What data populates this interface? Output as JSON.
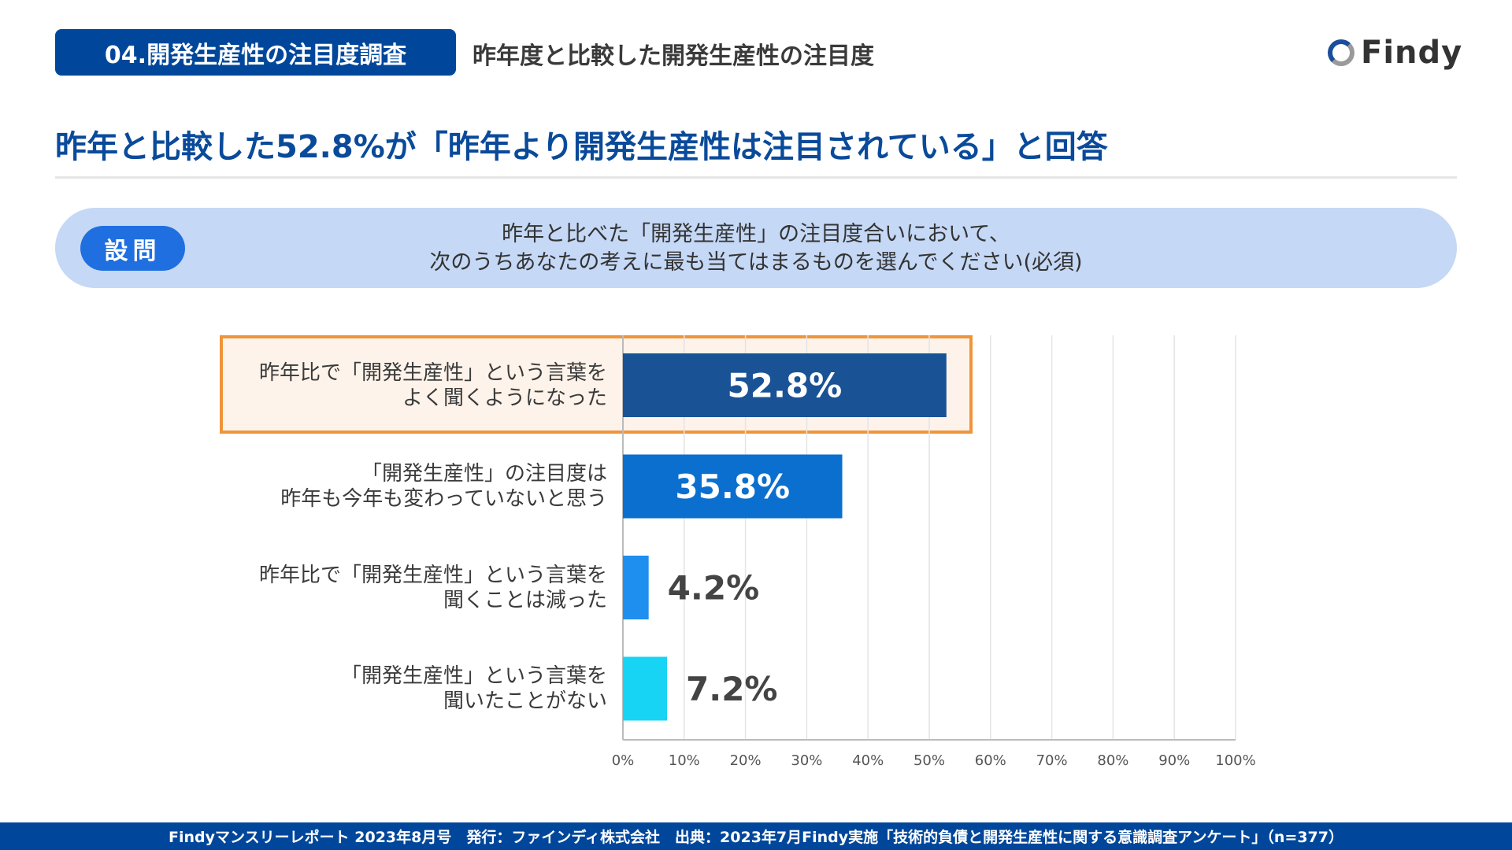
{
  "header": {
    "section_badge": "04.開発生産性の注目度調査",
    "subtitle": "昨年度と比較した開発生産性の注目度",
    "logo_text": "Findy"
  },
  "headline": "昨年と比較した52.8%が「昨年より開発生産性は注目されている」と回答",
  "question": {
    "badge": "設問",
    "line1": "昨年と比べた「開発生産性」の注目度合いにおいて、",
    "line2": "次のうちあなたの考えに最も当てはまるものを選んでください(必須)"
  },
  "chart_data": {
    "type": "bar",
    "orientation": "horizontal",
    "categories": [
      [
        "昨年比で「開発生産性」という言葉を",
        "よく聞くようになった"
      ],
      [
        "「開発生産性」の注目度は",
        "昨年も今年も変わっていないと思う"
      ],
      [
        "昨年比で「開発生産性」という言葉を",
        "聞くことは減った"
      ],
      [
        "「開発生産性」という言葉を",
        "聞いたことがない"
      ]
    ],
    "values": [
      52.8,
      35.8,
      4.2,
      7.2
    ],
    "value_labels": [
      "52.8%",
      "35.8%",
      "4.2%",
      "7.2%"
    ],
    "colors": [
      "#1a5296",
      "#0a6fcf",
      "#1e8fef",
      "#17d4f5"
    ],
    "highlight_index": 0,
    "highlight_color": "#f0943a",
    "xlim": [
      0,
      100
    ],
    "xticks": [
      "0%",
      "10%",
      "20%",
      "30%",
      "40%",
      "50%",
      "60%",
      "70%",
      "80%",
      "90%",
      "100%"
    ],
    "grid": true
  },
  "footer": "Findyマンスリーレポート 2023年8月号　発行：ファインディ株式会社　出典：2023年7月Findy実施「技術的負債と開発生産性に関する意識調査アンケート」（n=377）"
}
